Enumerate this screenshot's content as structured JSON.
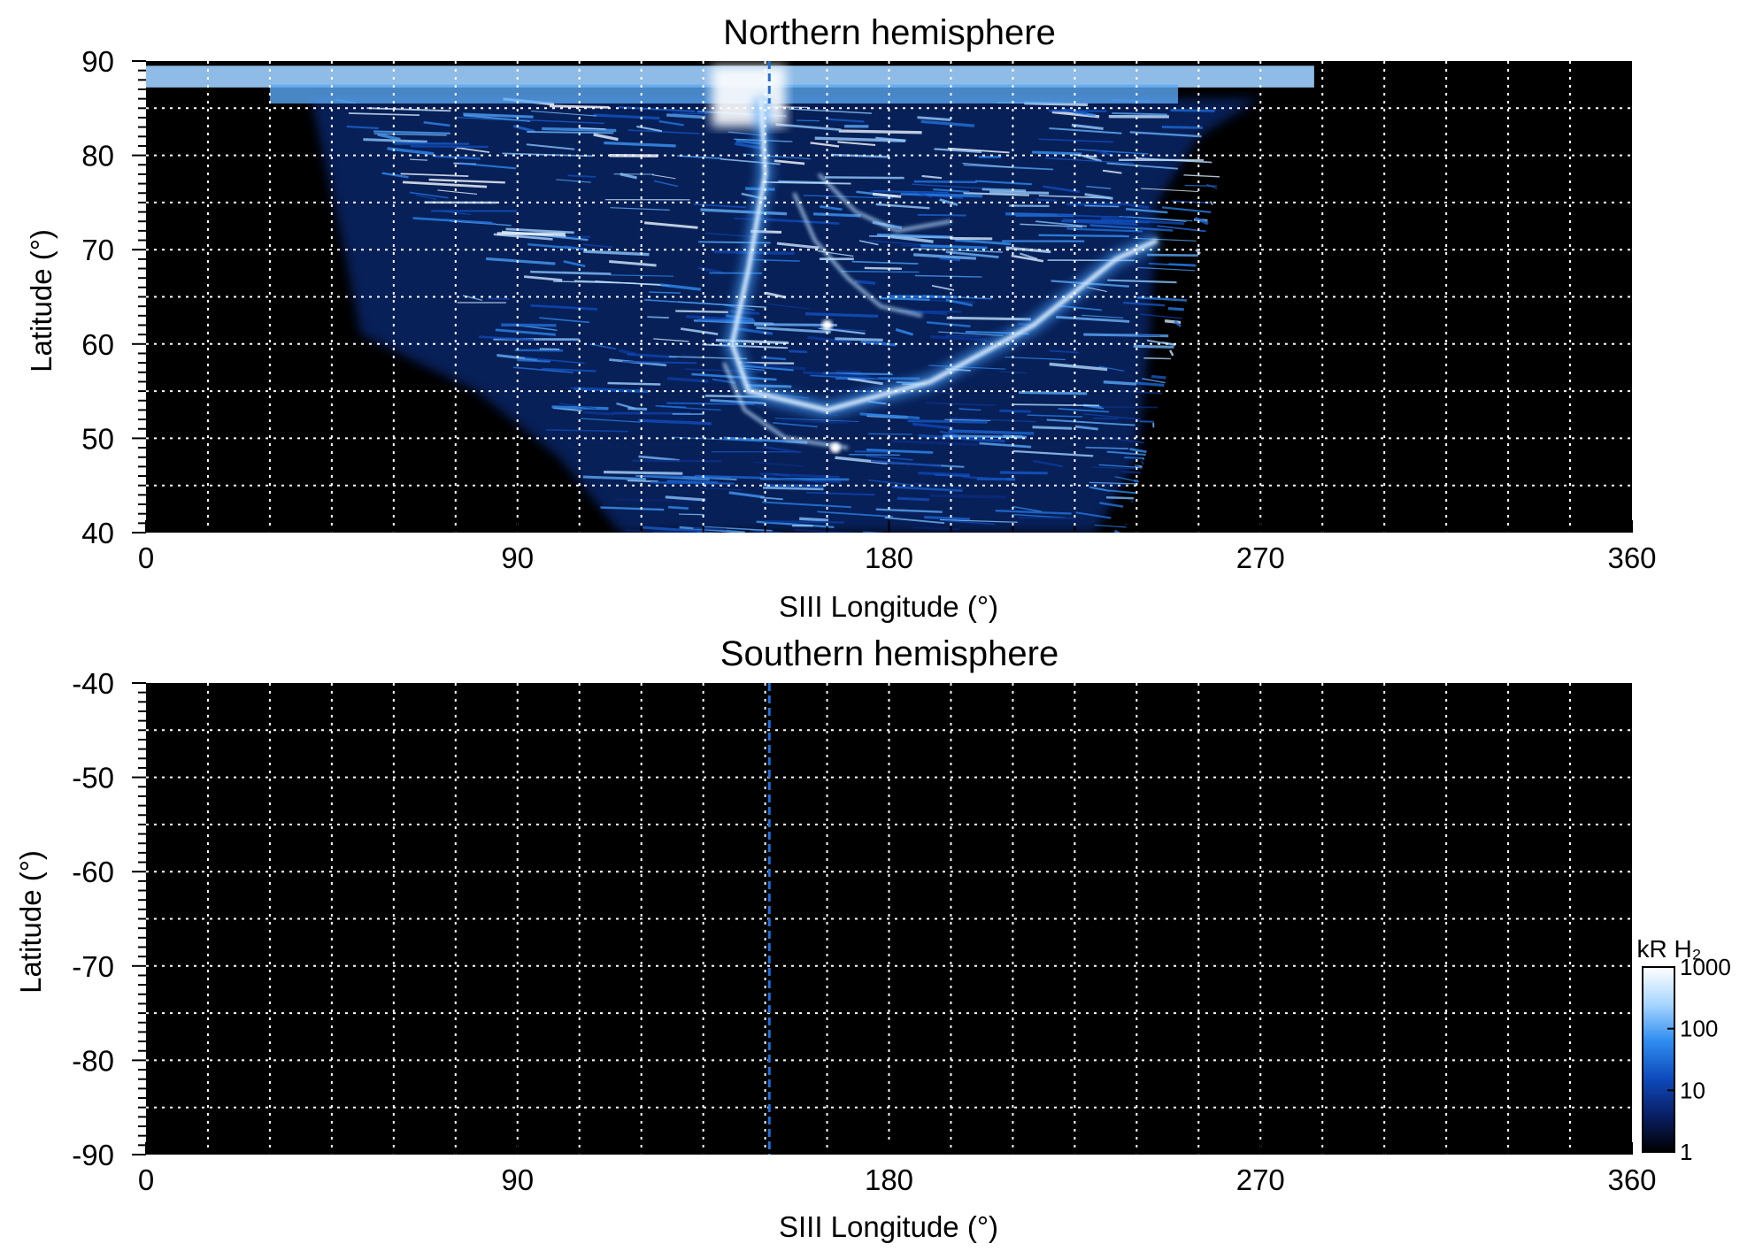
{
  "chart_data": [
    {
      "type": "heatmap",
      "panel": "north",
      "title": "Northern hemisphere",
      "xlabel": "SIII Longitude (°)",
      "ylabel": "Latitude (°)",
      "xlim": [
        0,
        360
      ],
      "ylim": [
        40,
        90
      ],
      "x_ticks": [
        0,
        90,
        180,
        270,
        360
      ],
      "y_ticks": [
        40,
        50,
        60,
        70,
        80,
        90
      ],
      "x_gridlines": [
        15,
        30,
        45,
        60,
        75,
        90,
        105,
        120,
        135,
        150,
        165,
        180,
        195,
        210,
        225,
        240,
        255,
        270,
        285,
        300,
        315,
        330,
        345
      ],
      "y_gridlines": [
        45,
        50,
        55,
        60,
        65,
        70,
        75,
        80,
        85
      ],
      "grid": true,
      "background_color": "#000000",
      "reference_longitude": 151,
      "reference_line_color": "#1e6fd9",
      "emission_region": {
        "lon_min": 40,
        "lon_max": 245,
        "lat_min": 40,
        "polar_cap_lat": 86,
        "cap_extent_lon": [
          0,
          283
        ]
      },
      "main_oval": {
        "color": "#dff0ff",
        "points": [
          [
            149,
            86
          ],
          [
            150,
            78
          ],
          [
            146,
            68
          ],
          [
            142,
            60
          ],
          [
            146,
            55
          ],
          [
            165,
            53
          ],
          [
            190,
            56
          ],
          [
            215,
            62
          ],
          [
            235,
            69
          ],
          [
            245,
            71
          ]
        ]
      },
      "secondary_arcs": [
        {
          "points": [
            [
              157,
              76
            ],
            [
              162,
              71
            ],
            [
              170,
              67
            ],
            [
              178,
              64
            ],
            [
              188,
              63
            ]
          ]
        },
        {
          "points": [
            [
              163,
              78
            ],
            [
              172,
              74
            ],
            [
              182,
              72
            ],
            [
              195,
              73
            ]
          ]
        },
        {
          "points": [
            [
              140,
              58
            ],
            [
              145,
              53
            ],
            [
              155,
              50
            ],
            [
              170,
              49
            ]
          ]
        }
      ],
      "bright_spots": [
        {
          "lon": 165,
          "lat": 62,
          "value": 1000
        },
        {
          "lon": 167,
          "lat": 49,
          "value": 1000
        }
      ]
    },
    {
      "type": "heatmap",
      "panel": "south",
      "title": "Southern hemisphere",
      "xlabel": "SIII Longitude (°)",
      "ylabel": "Latitude (°)",
      "xlim": [
        0,
        360
      ],
      "ylim": [
        -90,
        -40
      ],
      "x_ticks": [
        0,
        90,
        180,
        270,
        360
      ],
      "y_ticks": [
        -40,
        -50,
        -60,
        -70,
        -80,
        -90
      ],
      "x_gridlines": [
        15,
        30,
        45,
        60,
        75,
        90,
        105,
        120,
        135,
        150,
        165,
        180,
        195,
        210,
        225,
        240,
        255,
        270,
        285,
        300,
        315,
        330,
        345
      ],
      "y_gridlines": [
        -45,
        -50,
        -55,
        -60,
        -65,
        -70,
        -75,
        -80,
        -85
      ],
      "grid": true,
      "background_color": "#000000",
      "reference_longitude": 151,
      "reference_line_color": "#1e6fd9",
      "emission_region": null
    }
  ],
  "colorbar": {
    "title": "kR H₂",
    "scale": "log",
    "range": [
      1,
      1000
    ],
    "tick_values": [
      1,
      10,
      100,
      1000
    ],
    "tick_labels": [
      "1",
      "10",
      "100",
      "1000"
    ],
    "colors": [
      "#000000",
      "#0a1f66",
      "#0f4bbd",
      "#2f8df0",
      "#a8d6ff",
      "#ffffff"
    ]
  }
}
